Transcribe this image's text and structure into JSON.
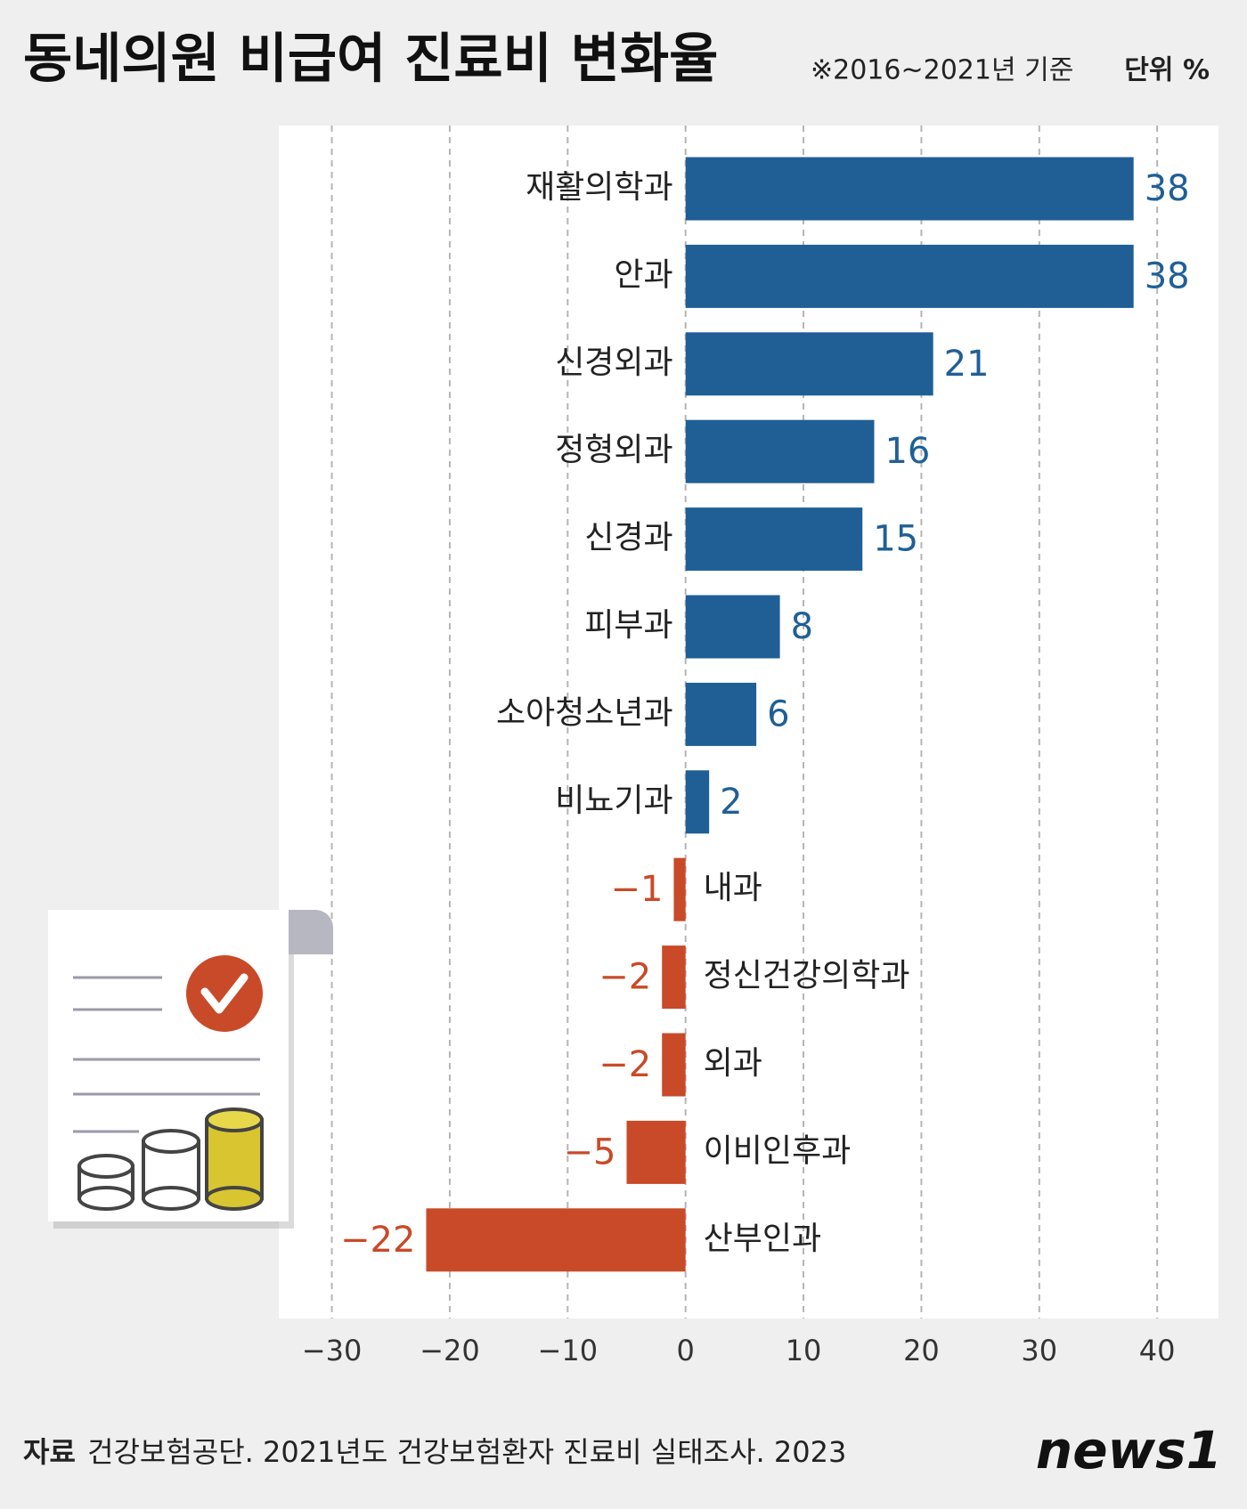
{
  "chart_data": {
    "type": "hbar",
    "title": "동네의원 비급여 진료비 변화율",
    "subtitle": "※2016~2021년 기준",
    "unit_label": "단위 %",
    "categories": [
      "재활의학과",
      "안과",
      "신경외과",
      "정형외과",
      "신경과",
      "피부과",
      "소아청소년과",
      "비뇨기과",
      "내과",
      "정신건강의학과",
      "외과",
      "이비인후과",
      "산부인과"
    ],
    "values": [
      38,
      38,
      21,
      16,
      15,
      8,
      6,
      2,
      -1,
      -2,
      -2,
      -5,
      -22
    ],
    "value_labels": [
      "38",
      "38",
      "21",
      "16",
      "15",
      "8",
      "6",
      "2",
      "−1",
      "−2",
      "−2",
      "−5",
      "−22"
    ],
    "positive_color": "#1f5f96",
    "negative_color": "#c94a28",
    "xlim": [
      -34.5,
      45.2
    ],
    "xticks": [
      {
        "value": -30,
        "label": "−30"
      },
      {
        "value": -20,
        "label": "−20"
      },
      {
        "value": -10,
        "label": "−10"
      },
      0,
      10,
      20,
      30,
      40
    ],
    "grid": true,
    "source_label": "자료",
    "source": "건강보험공단. 2021년도 건강보험환자 진료비 실태조사. 2023",
    "logo": "news1"
  }
}
